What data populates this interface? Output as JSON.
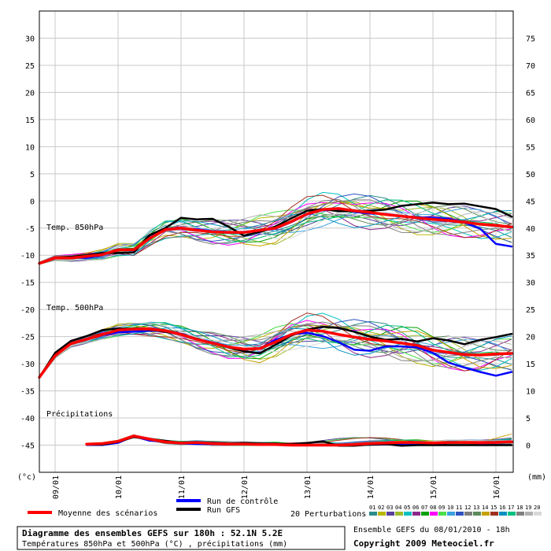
{
  "chart_data": {
    "type": "line",
    "y_left": {
      "min": -50,
      "max": 35,
      "ticks": [
        30,
        25,
        20,
        15,
        10,
        5,
        0,
        -5,
        -10,
        -15,
        -20,
        -25,
        -30,
        -35,
        -40,
        -45
      ],
      "unit": "(°c)"
    },
    "y_right": {
      "min": -5,
      "max": 80,
      "ticks": [
        75,
        70,
        65,
        60,
        55,
        50,
        45,
        40,
        35,
        30,
        25,
        20,
        15,
        10,
        5,
        0
      ],
      "unit": "(mm)"
    },
    "x": {
      "hours": [
        0,
        6,
        12,
        18,
        24,
        30,
        36,
        42,
        48,
        54,
        60,
        66,
        72,
        78,
        84,
        90,
        96,
        102,
        108,
        114,
        120,
        126,
        132,
        138,
        144,
        150,
        156,
        162,
        168,
        174,
        180
      ],
      "date_ticks": [
        {
          "h": 6,
          "label": "09/01"
        },
        {
          "h": 30,
          "label": "10/01"
        },
        {
          "h": 54,
          "label": "11/01"
        },
        {
          "h": 78,
          "label": "12/01"
        },
        {
          "h": 102,
          "label": "13/01"
        },
        {
          "h": 126,
          "label": "14/01"
        },
        {
          "h": 150,
          "label": "15/01"
        },
        {
          "h": 174,
          "label": "16/01"
        }
      ]
    },
    "panel_labels": {
      "t850": "Temp. 850hPa",
      "t500": "Temp. 500hPa",
      "precip": "Précipitations"
    },
    "series": [
      {
        "key": "mean850",
        "legend": "mean",
        "color": "#ff0000",
        "width": 3.5,
        "values": [
          -11.5,
          -10.5,
          -10.5,
          -10.2,
          -9.9,
          -9,
          -9,
          -6.9,
          -5.3,
          -5,
          -5.4,
          -5.7,
          -5.8,
          -5.8,
          -5.4,
          -5,
          -3.8,
          -2.4,
          -1.6,
          -1.4,
          -1.8,
          -2.1,
          -2.5,
          -2.8,
          -3.1,
          -3.4,
          -3.6,
          -3.9,
          -4.3,
          -4.5,
          -4.8
        ]
      },
      {
        "key": "ctl850",
        "legend": "control",
        "color": "#0000ff",
        "width": 2.5,
        "values": [
          -11.5,
          -10.6,
          -10.4,
          -10.5,
          -10,
          -8.9,
          -9.1,
          -6.8,
          -5.1,
          -5.1,
          -5.2,
          -5.6,
          -5.7,
          -5.7,
          -5.5,
          -5.1,
          -3.9,
          -2.5,
          -1.7,
          -1.6,
          -2,
          -2.3,
          -2.4,
          -2.8,
          -3,
          -3.1,
          -3.3,
          -3.9,
          -5.1,
          -7.9,
          -8.4
        ]
      },
      {
        "key": "gfs850",
        "legend": "gfs",
        "color": "#000000",
        "width": 2.5,
        "values": [
          -11.5,
          -10.5,
          -10.3,
          -10,
          -9.6,
          -9.6,
          -9.5,
          -6.3,
          -5,
          -3.1,
          -3.4,
          -3.3,
          -4.7,
          -6.4,
          -5.7,
          -4.7,
          -3.2,
          -1.8,
          -1.5,
          -1.9,
          -1.9,
          -1.8,
          -1.6,
          -0.9,
          -0.6,
          -0.3,
          -0.6,
          -0.5,
          -1,
          -1.5,
          -2.9
        ]
      },
      {
        "key": "mean500",
        "legend": "mean",
        "color": "#ff0000",
        "width": 3.5,
        "values": [
          -32.5,
          -28.5,
          -26.3,
          -25.5,
          -24.6,
          -23.8,
          -23.6,
          -23.6,
          -23.9,
          -24.6,
          -25.5,
          -26.2,
          -26.9,
          -27.3,
          -27.2,
          -26,
          -24.6,
          -23.8,
          -24,
          -24.6,
          -25.1,
          -25.5,
          -25.8,
          -26.2,
          -26.6,
          -27.5,
          -27.9,
          -28.3,
          -28.4,
          -28.2,
          -28.1
        ]
      },
      {
        "key": "ctl500",
        "legend": "control",
        "color": "#0000ff",
        "width": 2.5,
        "values": [
          -32.5,
          -28.6,
          -26.2,
          -25.4,
          -24.7,
          -24.2,
          -24.1,
          -23.9,
          -24,
          -24.5,
          -25.4,
          -26.1,
          -26.8,
          -27.4,
          -27.2,
          -25.6,
          -24.6,
          -24.3,
          -24.9,
          -26,
          -27.4,
          -27.6,
          -26.8,
          -26.8,
          -27,
          -28,
          -29.8,
          -30.7,
          -31.5,
          -32.2,
          -31.5
        ]
      },
      {
        "key": "gfs500",
        "legend": "gfs",
        "color": "#000000",
        "width": 2.5,
        "values": [
          -32.5,
          -28,
          -25.8,
          -24.9,
          -23.8,
          -23.5,
          -23.6,
          -23.7,
          -24.1,
          -24.6,
          -25.4,
          -26.2,
          -27,
          -27.7,
          -28.1,
          -26.5,
          -24.8,
          -23.7,
          -23.2,
          -23.4,
          -24.1,
          -25,
          -25.6,
          -25.4,
          -25.9,
          -25.3,
          -25.7,
          -26.4,
          -25.6,
          -25.1,
          -24.5
        ]
      },
      {
        "key": "meanP",
        "legend": "mean",
        "color": "#ff0000",
        "width": 3.5,
        "values": [
          null,
          null,
          null,
          -44.8,
          -44.7,
          -44.3,
          -43.3,
          -43.9,
          -44.4,
          -44.6,
          -44.5,
          -44.7,
          -44.8,
          -44.8,
          -44.9,
          -44.9,
          -45,
          -45,
          -45,
          -45,
          -44.9,
          -44.7,
          -44.6,
          -44.5,
          -44.5,
          -44.6,
          -44.5,
          -44.5,
          -44.5,
          -44.5,
          -44.4
        ]
      },
      {
        "key": "gfsP",
        "legend": "gfs",
        "color": "#000000",
        "width": 2.5,
        "values": [
          null,
          null,
          null,
          -44.9,
          -44.9,
          -44.4,
          -43.5,
          -43.9,
          -44.2,
          -44.6,
          -44.5,
          -44.6,
          -44.7,
          -44.6,
          -44.7,
          -44.7,
          -44.8,
          -44.6,
          -44.3,
          -45.1,
          -45.1,
          -44.9,
          -44.8,
          -45.1,
          -45,
          -45,
          -45,
          -45,
          -45,
          -45,
          -45
        ]
      },
      {
        "key": "ctlP",
        "legend": "control",
        "color": "#0000ff",
        "width": 2,
        "values": [
          null,
          null,
          null,
          -45,
          -45,
          -44.6,
          -43.4,
          -44.2,
          -44.4,
          -44.7,
          -44.8,
          -44.8,
          -44.9,
          -44.9,
          -44.9,
          -44.9,
          -45,
          -45,
          -45,
          -45,
          -45,
          -44.9,
          -44.9,
          -44.9,
          -44.9,
          -44.9,
          -45,
          -45,
          -45,
          -45,
          -45
        ]
      }
    ],
    "perturbations_note": "20 ensemble members drawn as thin coloured lines",
    "member_colors": [
      "#2b8c8c",
      "#b8b800",
      "#5a3e9e",
      "#9cba2a",
      "#00c0c0",
      "#8b2a8b",
      "#00a000",
      "#ff00ff",
      "#4ade4a",
      "#3aa0e0",
      "#2e52c0",
      "#7e7e7e",
      "#5c8a5c",
      "#c8a000",
      "#a03020",
      "#0090c0",
      "#00c080",
      "#808080",
      "#b0b0b0",
      "#d8d8d8"
    ]
  },
  "legend": {
    "mean": "Moyenne des scénarios",
    "control": "Run de contrôle",
    "gfs": "Run GFS",
    "perturbations": "20 Perturbations",
    "member_ids": [
      "01",
      "02",
      "03",
      "04",
      "05",
      "06",
      "07",
      "08",
      "09",
      "10",
      "11",
      "12",
      "13",
      "14",
      "15",
      "16",
      "17",
      "18",
      "19",
      "20"
    ]
  },
  "footer": {
    "title": "Diagramme des ensembles GEFS sur 180h : 52.1N 5.2E",
    "subtitle": "Températures 850hPa et 500hPa (°C) , précipitations (mm)",
    "run": "Ensemble GEFS du 08/01/2010 - 18h",
    "copyright": "Copyright 2009 Meteociel.fr"
  }
}
